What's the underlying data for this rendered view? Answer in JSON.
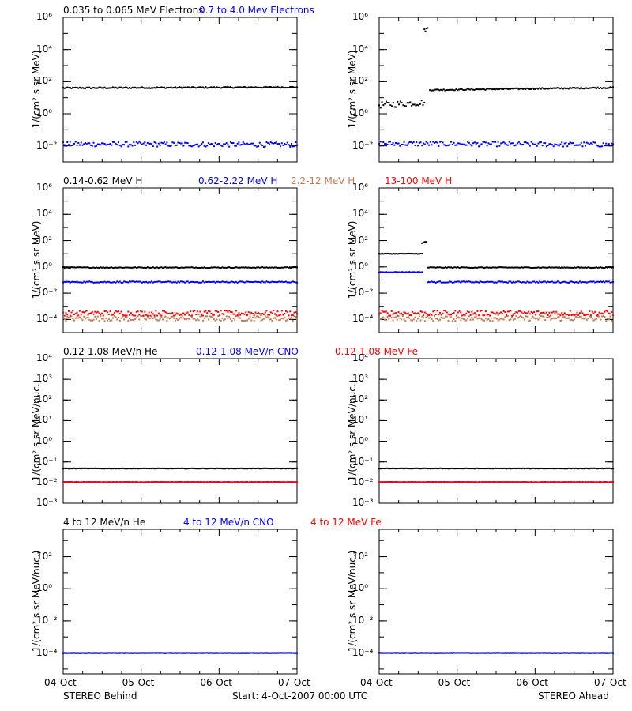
{
  "footer": {
    "left": "STEREO Behind",
    "center": "Start:  4-Oct-2007 00:00 UTC",
    "right": "STEREO Ahead"
  },
  "colors": {
    "black": "#000000",
    "blue": "#0000ff",
    "tan": "#c87850",
    "red": "#ff0000"
  },
  "chart_data": [
    {
      "type": "scatter",
      "row": 1,
      "legend": [
        {
          "text": "0.035 to 0.065 MeV Electrons",
          "color": "#000000"
        },
        {
          "text": "0.7 to 4.0 Mev Electrons",
          "color": "#0000ff"
        }
      ],
      "ylabel": "1/(cm² s sr MeV)",
      "yscale": "log",
      "ylim": [
        0.001,
        1000000
      ],
      "yticks": [
        {
          "value": 0.01,
          "label": "10⁻²"
        },
        {
          "value": 1,
          "label": "10⁰"
        },
        {
          "value": 100,
          "label": "10²"
        },
        {
          "value": 10000,
          "label": "10⁴"
        },
        {
          "value": 1000000,
          "label": "10⁶"
        }
      ],
      "x_ticks": [
        "04-Oct",
        "05-Oct",
        "06-Oct",
        "07-Oct"
      ],
      "panels": [
        {
          "side": "behind",
          "series": [
            {
              "color": "#000000",
              "segments": [
                {
                  "x": [
                    0,
                    3
                  ],
                  "y": [
                    40,
                    45
                  ],
                  "spread": 0.04
                }
              ]
            },
            {
              "color": "#0000ff",
              "segments": [
                {
                  "x": [
                    0,
                    3
                  ],
                  "y": [
                    0.013,
                    0.012
                  ],
                  "spread": 0.15
                }
              ]
            }
          ]
        },
        {
          "side": "ahead",
          "series": [
            {
              "color": "#000000",
              "segments": [
                {
                  "x": [
                    0,
                    0.58
                  ],
                  "y": [
                    3.5,
                    5
                  ],
                  "spread": 0.2
                },
                {
                  "x": [
                    0.58,
                    0.62
                  ],
                  "y": [
                    150000,
                    200000
                  ],
                  "spread": 0.1
                },
                {
                  "x": [
                    0.65,
                    3
                  ],
                  "y": [
                    30,
                    42
                  ],
                  "spread": 0.04
                }
              ]
            },
            {
              "color": "#0000ff",
              "segments": [
                {
                  "x": [
                    0,
                    3
                  ],
                  "y": [
                    0.014,
                    0.012
                  ],
                  "spread": 0.15
                }
              ]
            }
          ]
        }
      ]
    },
    {
      "type": "scatter",
      "row": 2,
      "legend": [
        {
          "text": "0.14-0.62 MeV H",
          "color": "#000000"
        },
        {
          "text": "0.62-2.22 MeV H",
          "color": "#0000ff"
        },
        {
          "text": "2.2-12 MeV H",
          "color": "#c87850"
        },
        {
          "text": "13-100 MeV H",
          "color": "#ff0000"
        }
      ],
      "ylabel": "1/(cm² s sr MeV)",
      "yscale": "log",
      "ylim": [
        1e-05,
        1000000
      ],
      "yticks": [
        {
          "value": 0.0001,
          "label": "10⁻⁴"
        },
        {
          "value": 0.01,
          "label": "10⁻²"
        },
        {
          "value": 1,
          "label": "10⁰"
        },
        {
          "value": 100,
          "label": "10²"
        },
        {
          "value": 10000,
          "label": "10⁴"
        },
        {
          "value": 1000000,
          "label": "10⁶"
        }
      ],
      "x_ticks": [
        "04-Oct",
        "05-Oct",
        "06-Oct",
        "07-Oct"
      ],
      "panels": [
        {
          "side": "behind",
          "series": [
            {
              "color": "#000000",
              "segments": [
                {
                  "x": [
                    0,
                    3
                  ],
                  "y": [
                    0.9,
                    0.9
                  ],
                  "spread": 0.03
                }
              ]
            },
            {
              "color": "#0000ff",
              "segments": [
                {
                  "x": [
                    0,
                    3
                  ],
                  "y": [
                    0.07,
                    0.07
                  ],
                  "spread": 0.05
                }
              ]
            },
            {
              "color": "#c87850",
              "segments": [
                {
                  "x": [
                    0,
                    3
                  ],
                  "y": [
                    0.00012,
                    0.00012
                  ],
                  "spread": 0.2
                }
              ]
            },
            {
              "color": "#ff0000",
              "segments": [
                {
                  "x": [
                    0,
                    3
                  ],
                  "y": [
                    0.0003,
                    0.0003
                  ],
                  "spread": 0.2
                }
              ]
            }
          ]
        },
        {
          "side": "ahead",
          "series": [
            {
              "color": "#000000",
              "segments": [
                {
                  "x": [
                    0,
                    0.55
                  ],
                  "y": [
                    10,
                    10
                  ],
                  "spread": 0.02
                },
                {
                  "x": [
                    0.55,
                    0.6
                  ],
                  "y": [
                    60,
                    80
                  ],
                  "spread": 0.1
                },
                {
                  "x": [
                    0.62,
                    3
                  ],
                  "y": [
                    0.9,
                    0.9
                  ],
                  "spread": 0.03
                }
              ]
            },
            {
              "color": "#0000ff",
              "segments": [
                {
                  "x": [
                    0,
                    0.55
                  ],
                  "y": [
                    0.4,
                    0.4
                  ],
                  "spread": 0.02
                },
                {
                  "x": [
                    0.62,
                    3
                  ],
                  "y": [
                    0.07,
                    0.07
                  ],
                  "spread": 0.05
                }
              ]
            },
            {
              "color": "#c87850",
              "segments": [
                {
                  "x": [
                    0,
                    3
                  ],
                  "y": [
                    0.00012,
                    0.00012
                  ],
                  "spread": 0.2
                }
              ]
            },
            {
              "color": "#ff0000",
              "segments": [
                {
                  "x": [
                    0,
                    3
                  ],
                  "y": [
                    0.0003,
                    0.0003
                  ],
                  "spread": 0.2
                }
              ]
            }
          ]
        }
      ]
    },
    {
      "type": "scatter",
      "row": 3,
      "legend": [
        {
          "text": "0.12-1.08 MeV/n He",
          "color": "#000000"
        },
        {
          "text": "0.12-1.08 MeV/n CNO",
          "color": "#0000ff"
        },
        {
          "text": "0.12-1.08 MeV Fe",
          "color": "#ff0000"
        }
      ],
      "ylabel": "1/(cm² s sr MeV/nuc.)",
      "yscale": "log",
      "ylim": [
        0.001,
        10000
      ],
      "yticks": [
        {
          "value": 0.001,
          "label": "10⁻³"
        },
        {
          "value": 0.01,
          "label": "10⁻²"
        },
        {
          "value": 0.1,
          "label": "10⁻¹"
        },
        {
          "value": 1,
          "label": "10⁰"
        },
        {
          "value": 10,
          "label": "10¹"
        },
        {
          "value": 100,
          "label": "10²"
        },
        {
          "value": 1000,
          "label": "10³"
        },
        {
          "value": 10000,
          "label": "10⁴"
        }
      ],
      "x_ticks": [
        "04-Oct",
        "05-Oct",
        "06-Oct",
        "07-Oct"
      ],
      "panels": [
        {
          "side": "behind",
          "series": [
            {
              "color": "#000000",
              "segments": [
                {
                  "x": [
                    0,
                    3
                  ],
                  "y": [
                    0.048,
                    0.048
                  ],
                  "spread": 0.01
                }
              ]
            },
            {
              "color": "#0000ff",
              "segments": [
                {
                  "x": [
                    0,
                    3
                  ],
                  "y": [
                    0.0105,
                    0.0105
                  ],
                  "spread": 0.01
                }
              ]
            },
            {
              "color": "#ff0000",
              "segments": [
                {
                  "x": [
                    0,
                    3
                  ],
                  "y": [
                    0.0105,
                    0.0105
                  ],
                  "spread": 0.01
                }
              ]
            }
          ]
        },
        {
          "side": "ahead",
          "series": [
            {
              "color": "#000000",
              "segments": [
                {
                  "x": [
                    0,
                    3
                  ],
                  "y": [
                    0.048,
                    0.048
                  ],
                  "spread": 0.01
                }
              ]
            },
            {
              "color": "#0000ff",
              "segments": [
                {
                  "x": [
                    0,
                    3
                  ],
                  "y": [
                    0.0105,
                    0.0105
                  ],
                  "spread": 0.01
                }
              ]
            },
            {
              "color": "#ff0000",
              "segments": [
                {
                  "x": [
                    0,
                    3
                  ],
                  "y": [
                    0.0105,
                    0.0105
                  ],
                  "spread": 0.01
                }
              ]
            }
          ]
        }
      ]
    },
    {
      "type": "scatter",
      "row": 4,
      "legend": [
        {
          "text": "4 to 12 MeV/n He",
          "color": "#000000"
        },
        {
          "text": "4 to 12 MeV/n CNO",
          "color": "#0000ff"
        },
        {
          "text": "4 to 12 MeV Fe",
          "color": "#ff0000"
        }
      ],
      "ylabel": "1/(cm² s sr MeV/nuc.)",
      "yscale": "log",
      "ylim": [
        5e-06,
        5000
      ],
      "yticks": [
        {
          "value": 0.0001,
          "label": "10⁻⁴"
        },
        {
          "value": 0.01,
          "label": "10⁻²"
        },
        {
          "value": 1,
          "label": "10⁰"
        },
        {
          "value": 100,
          "label": "10²"
        }
      ],
      "x_ticks": [
        "04-Oct",
        "05-Oct",
        "06-Oct",
        "07-Oct"
      ],
      "panels": [
        {
          "side": "behind",
          "series": [
            {
              "color": "#000000",
              "segments": [
                {
                  "x": [
                    0,
                    3
                  ],
                  "y": [
                    0.0001,
                    0.0001
                  ],
                  "spread": 0.01
                }
              ]
            },
            {
              "color": "#0000ff",
              "segments": [
                {
                  "x": [
                    0,
                    3
                  ],
                  "y": [
                    0.0001,
                    0.0001
                  ],
                  "spread": 0.01
                }
              ]
            }
          ]
        },
        {
          "side": "ahead",
          "series": [
            {
              "color": "#000000",
              "segments": [
                {
                  "x": [
                    0,
                    3
                  ],
                  "y": [
                    0.0001,
                    0.0001
                  ],
                  "spread": 0.01
                }
              ]
            },
            {
              "color": "#0000ff",
              "segments": [
                {
                  "x": [
                    0,
                    3
                  ],
                  "y": [
                    0.0001,
                    0.0001
                  ],
                  "spread": 0.01
                }
              ]
            }
          ]
        }
      ]
    }
  ]
}
